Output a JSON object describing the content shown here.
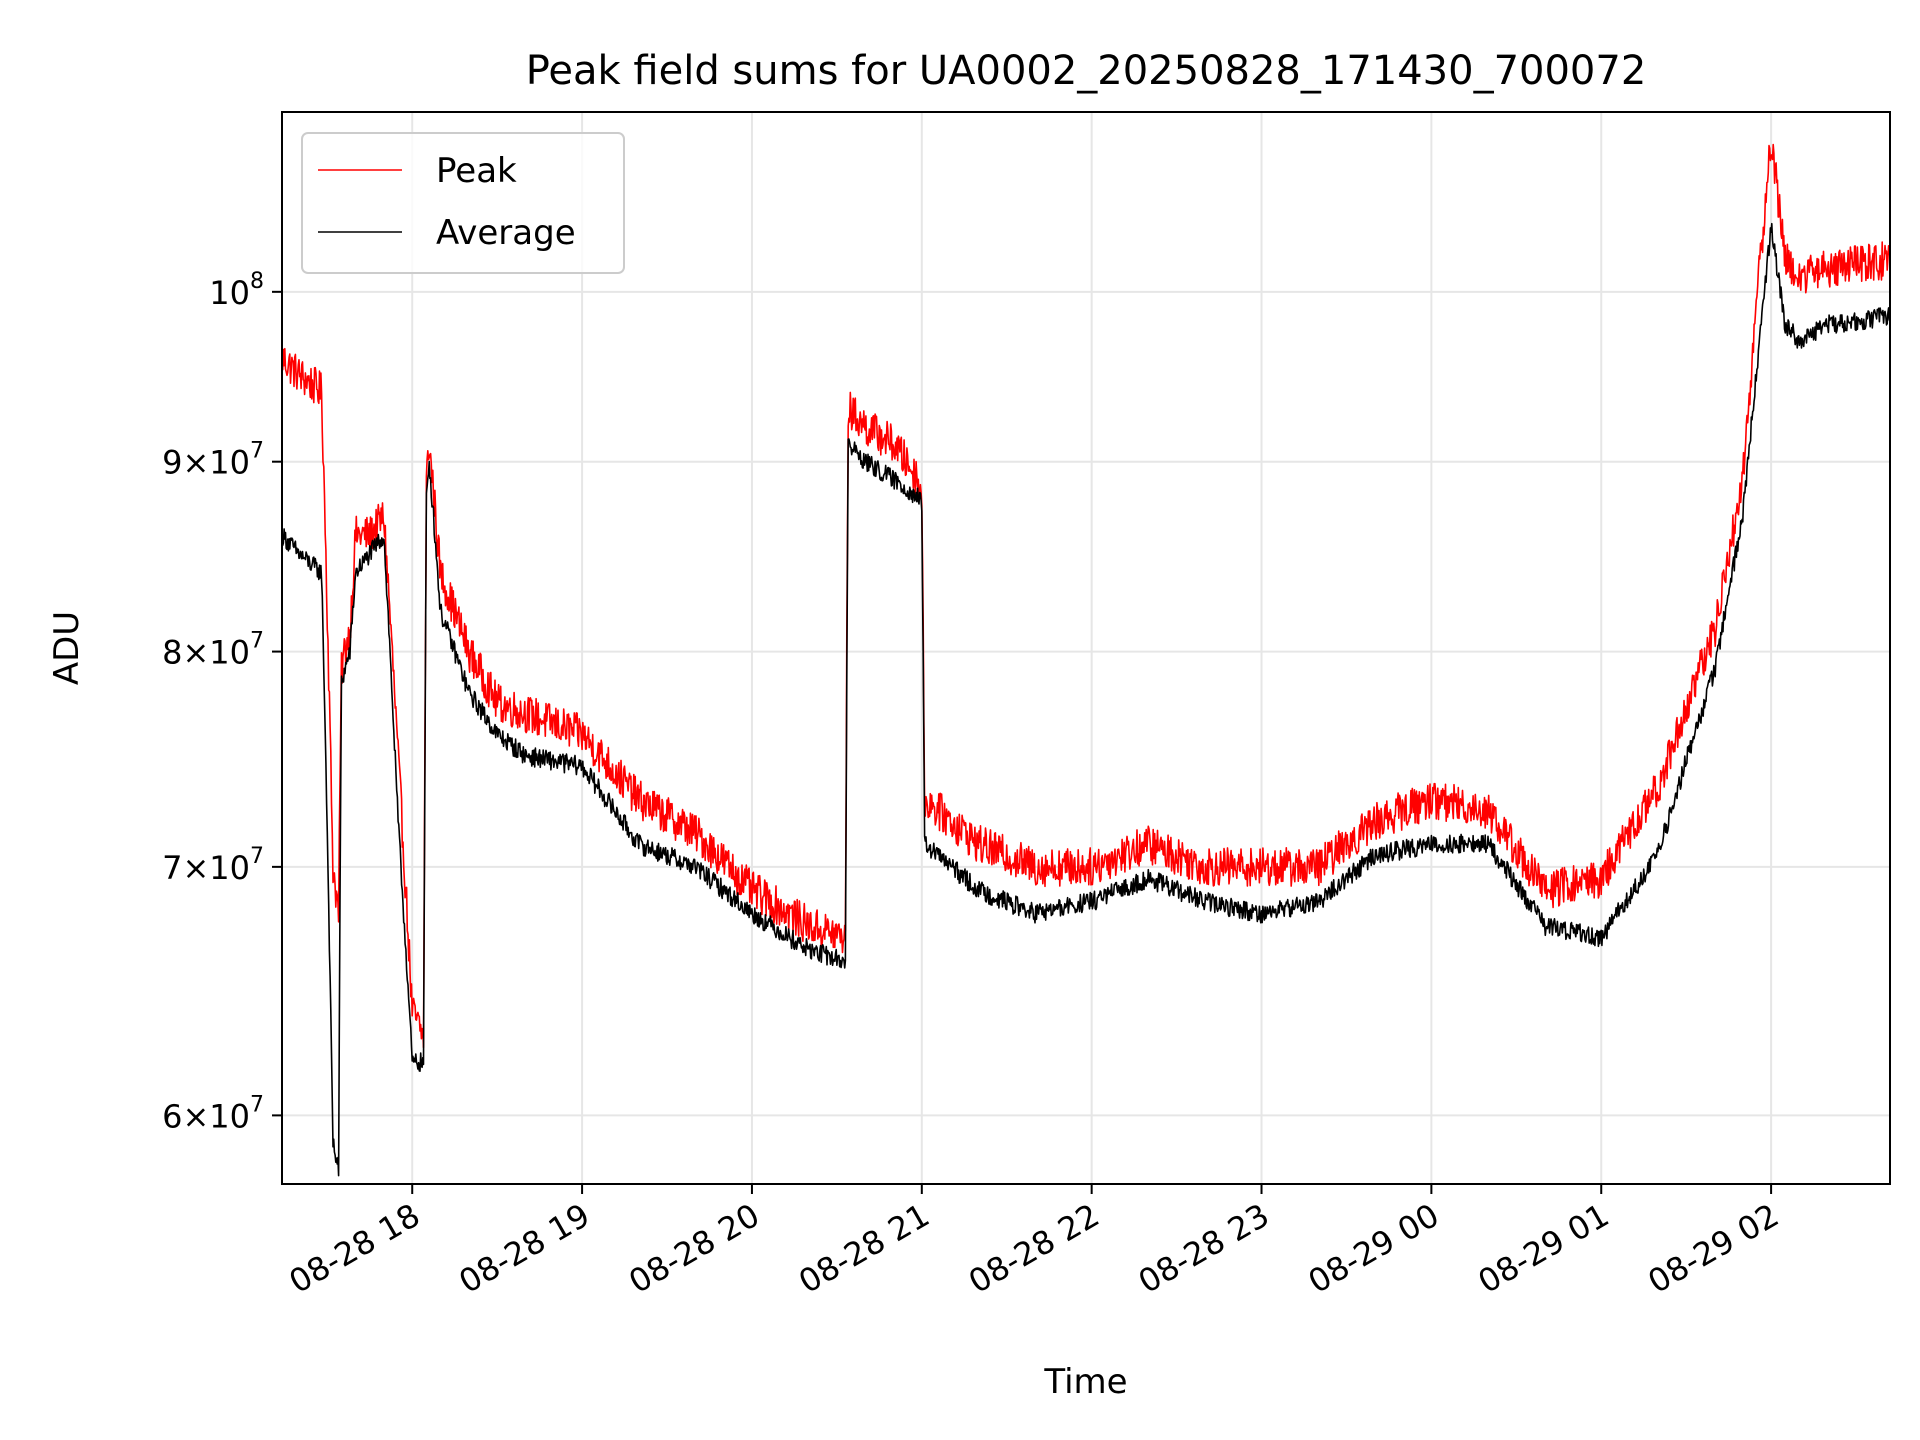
{
  "chart_data": {
    "type": "line",
    "title": "Peak field sums for UA0002_20250828_171430_700072",
    "xlabel": "Time",
    "ylabel": "ADU",
    "y_scale": "log",
    "xlim": [
      "2025-08-28 17:14",
      "2025-08-29 02:42"
    ],
    "ylim": [
      57500000,
      111800000
    ],
    "grid": true,
    "legend": {
      "placement": "top-left",
      "entries": [
        "Peak",
        "Average"
      ]
    },
    "x_ticks": [
      {
        "value": "2025-08-28 18:00",
        "label": "08-28 18"
      },
      {
        "value": "2025-08-28 19:00",
        "label": "08-28 19"
      },
      {
        "value": "2025-08-28 20:00",
        "label": "08-28 20"
      },
      {
        "value": "2025-08-28 21:00",
        "label": "08-28 21"
      },
      {
        "value": "2025-08-28 22:00",
        "label": "08-28 22"
      },
      {
        "value": "2025-08-28 23:00",
        "label": "08-28 23"
      },
      {
        "value": "2025-08-29 00:00",
        "label": "08-29 00"
      },
      {
        "value": "2025-08-29 01:00",
        "label": "08-29 01"
      },
      {
        "value": "2025-08-29 02:00",
        "label": "08-29 02"
      }
    ],
    "y_ticks": [
      {
        "value": 60000000,
        "base": "6",
        "exp": "7"
      },
      {
        "value": 70000000,
        "base": "7",
        "exp": "7"
      },
      {
        "value": 80000000,
        "base": "8",
        "exp": "7"
      },
      {
        "value": 90000000,
        "base": "9",
        "exp": "7"
      },
      {
        "value": 100000000,
        "base": "10",
        "exp": "8"
      }
    ],
    "series": [
      {
        "name": "Peak",
        "color": "#ff0000",
        "x": [
          "2025-08-28 17:14",
          "2025-08-28 17:20",
          "2025-08-28 17:28",
          "2025-08-28 17:32",
          "2025-08-28 17:34",
          "2025-08-28 17:35",
          "2025-08-28 17:36",
          "2025-08-28 17:38",
          "2025-08-28 17:40",
          "2025-08-28 17:45",
          "2025-08-28 17:50",
          "2025-08-28 17:55",
          "2025-08-28 18:00",
          "2025-08-28 18:04",
          "2025-08-28 18:05",
          "2025-08-28 18:06",
          "2025-08-28 18:10",
          "2025-08-28 18:20",
          "2025-08-28 18:30",
          "2025-08-28 18:40",
          "2025-08-28 19:00",
          "2025-08-28 19:20",
          "2025-08-28 19:40",
          "2025-08-28 20:00",
          "2025-08-28 20:20",
          "2025-08-28 20:33",
          "2025-08-28 20:34",
          "2025-08-28 20:40",
          "2025-08-28 20:50",
          "2025-08-28 20:59",
          "2025-08-28 21:00",
          "2025-08-28 21:01",
          "2025-08-28 21:20",
          "2025-08-28 21:40",
          "2025-08-28 22:00",
          "2025-08-28 22:20",
          "2025-08-28 22:40",
          "2025-08-28 23:00",
          "2025-08-28 23:20",
          "2025-08-28 23:40",
          "2025-08-29 00:00",
          "2025-08-29 00:20",
          "2025-08-29 00:40",
          "2025-08-29 01:00",
          "2025-08-29 01:20",
          "2025-08-29 01:40",
          "2025-08-29 01:50",
          "2025-08-29 02:00",
          "2025-08-29 02:05",
          "2025-08-29 02:10",
          "2025-08-29 02:20",
          "2025-08-29 02:42"
        ],
        "values": [
          96000000,
          95000000,
          94000000,
          70000000,
          68000000,
          79000000,
          80000000,
          81000000,
          86000000,
          86000000,
          87000000,
          75000000,
          64000000,
          63000000,
          89000000,
          91000000,
          84000000,
          80000000,
          77500000,
          77000000,
          76000000,
          73000000,
          71500000,
          69000000,
          67500000,
          67000000,
          93000000,
          92000000,
          91000000,
          89000000,
          88000000,
          73000000,
          71000000,
          70000000,
          70000000,
          71000000,
          70000000,
          70000000,
          70000000,
          72000000,
          73000000,
          72500000,
          69000000,
          69500000,
          73500000,
          81000000,
          89000000,
          110000000,
          102000000,
          101000000,
          101500000,
          102000000
        ]
      },
      {
        "name": "Average",
        "color": "#000000",
        "x": [
          "2025-08-28 17:14",
          "2025-08-28 17:20",
          "2025-08-28 17:28",
          "2025-08-28 17:32",
          "2025-08-28 17:34",
          "2025-08-28 17:35",
          "2025-08-28 17:36",
          "2025-08-28 17:38",
          "2025-08-28 17:40",
          "2025-08-28 17:45",
          "2025-08-28 17:50",
          "2025-08-28 17:55",
          "2025-08-28 18:00",
          "2025-08-28 18:04",
          "2025-08-28 18:05",
          "2025-08-28 18:06",
          "2025-08-28 18:10",
          "2025-08-28 18:20",
          "2025-08-28 18:30",
          "2025-08-28 18:40",
          "2025-08-28 19:00",
          "2025-08-28 19:20",
          "2025-08-28 19:40",
          "2025-08-28 20:00",
          "2025-08-28 20:20",
          "2025-08-28 20:33",
          "2025-08-28 20:34",
          "2025-08-28 20:40",
          "2025-08-28 20:50",
          "2025-08-28 20:59",
          "2025-08-28 21:00",
          "2025-08-28 21:01",
          "2025-08-28 21:20",
          "2025-08-28 21:40",
          "2025-08-28 22:00",
          "2025-08-28 22:20",
          "2025-08-28 22:40",
          "2025-08-28 23:00",
          "2025-08-28 23:20",
          "2025-08-28 23:40",
          "2025-08-29 00:00",
          "2025-08-29 00:20",
          "2025-08-29 00:40",
          "2025-08-29 01:00",
          "2025-08-29 01:20",
          "2025-08-29 01:40",
          "2025-08-29 01:50",
          "2025-08-29 02:00",
          "2025-08-29 02:05",
          "2025-08-29 02:10",
          "2025-08-29 02:20",
          "2025-08-29 02:42"
        ],
        "values": [
          86000000,
          85000000,
          84000000,
          59000000,
          58000000,
          78500000,
          79000000,
          80000000,
          84000000,
          85000000,
          86000000,
          72000000,
          62000000,
          62000000,
          88000000,
          90000000,
          82000000,
          78000000,
          76000000,
          75000000,
          74500000,
          71000000,
          70000000,
          68000000,
          66500000,
          66000000,
          91000000,
          90000000,
          89000000,
          88000000,
          87500000,
          71000000,
          69000000,
          68000000,
          68500000,
          69500000,
          68500000,
          68000000,
          68500000,
          70500000,
          71000000,
          71000000,
          67500000,
          67000000,
          70500000,
          79000000,
          87000000,
          104000000,
          98000000,
          97000000,
          98000000,
          98500000
        ]
      }
    ]
  }
}
